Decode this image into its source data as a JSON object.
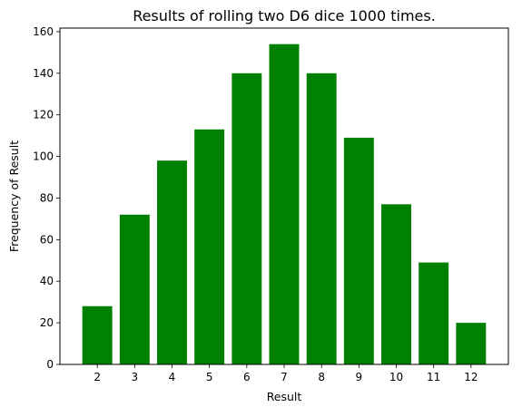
{
  "chart_data": {
    "type": "bar",
    "title": "Results of rolling two D6 dice 1000 times.",
    "xlabel": "Result",
    "ylabel": "Frequency of Result",
    "categories": [
      "2",
      "3",
      "4",
      "5",
      "6",
      "7",
      "8",
      "9",
      "10",
      "11",
      "12"
    ],
    "values": [
      28,
      72,
      98,
      113,
      140,
      154,
      140,
      109,
      77,
      49,
      20
    ],
    "yticks": [
      0,
      20,
      40,
      60,
      80,
      100,
      120,
      140,
      160
    ],
    "ylim": [
      0,
      161.7
    ],
    "grid": false,
    "bar_color": "#008000"
  }
}
